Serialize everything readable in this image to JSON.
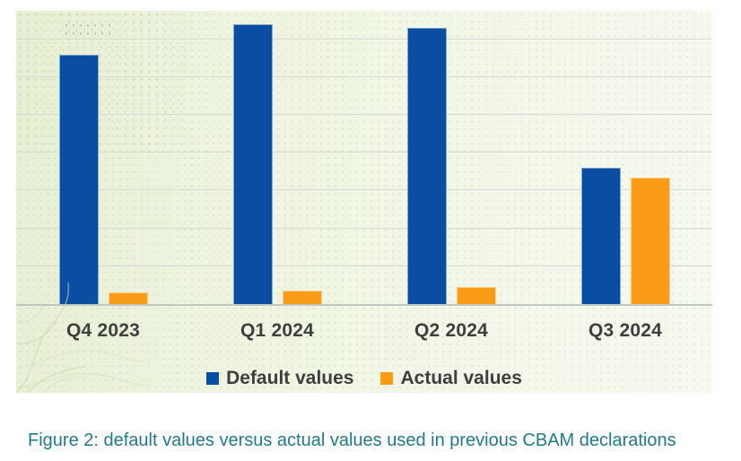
{
  "caption": "Figure 2: default values versus actual values used in previous CBAM declarations",
  "colors": {
    "default_series": "#0a4ea3",
    "actual_series": "#fb9c18",
    "axis_label_text": "#3f3f3f",
    "caption_text": "#1f7a8c",
    "gridline": "#d4d9d4",
    "baseline": "#c0c6c0",
    "panel_background_left": "#e7efd3",
    "panel_background_right": "#f6f9ef"
  },
  "chart_data": {
    "type": "bar",
    "title": "",
    "xlabel": "",
    "ylabel": "",
    "categories": [
      "Q4 2023",
      "Q1 2024",
      "Q2 2024",
      "Q3 2024"
    ],
    "series": [
      {
        "name": "Default values",
        "color": "#0a4ea3",
        "values": [
          6.6,
          7.4,
          7.3,
          3.6
        ]
      },
      {
        "name": "Actual values",
        "color": "#fb9c18",
        "values": [
          0.3,
          0.35,
          0.45,
          3.35
        ]
      }
    ],
    "value_unit": "gridline-units (y axis unlabeled; 1 unit = 1 gridline spacing, baseline = 0)",
    "ylim": [
      0,
      7.75
    ],
    "gridlines": 7,
    "grid": true,
    "yticks_shown": false,
    "legend_position": "bottom"
  }
}
